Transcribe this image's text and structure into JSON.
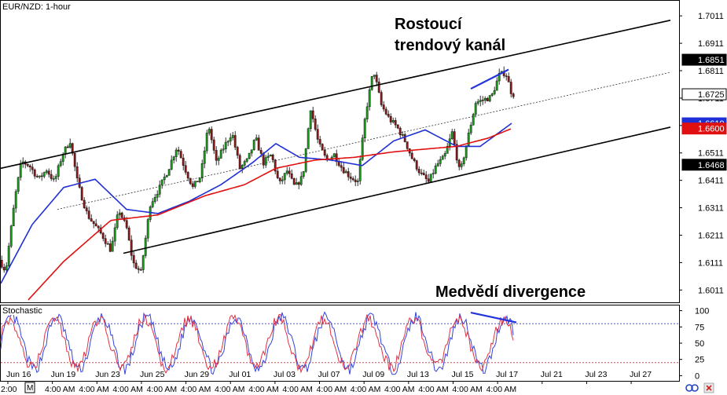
{
  "chart_data": [
    {
      "type": "candlestick",
      "symbol_label": "EUR/NZD: 1-hour",
      "annotations": {
        "channel_title_line1": "Rostoucí",
        "channel_title_line2": "trendový kanál",
        "divergence_title": "Medvědí divergence"
      },
      "y_ticks": [
        "1.7011",
        "1.6911",
        "1.6811",
        "1.6711",
        "1.6611",
        "1.6511",
        "1.6411",
        "1.6311",
        "1.6211",
        "1.6111",
        "1.6011"
      ],
      "y_tick_values": [
        1.7011,
        1.6911,
        1.6811,
        1.6711,
        1.6611,
        1.6511,
        1.6411,
        1.6311,
        1.6211,
        1.6111,
        1.6011
      ],
      "ylim": [
        1.5966,
        1.7066
      ],
      "price_tags": [
        {
          "label": "1.6851",
          "value": 1.6851,
          "style": "black"
        },
        {
          "label": "1.6725",
          "value": 1.6725,
          "style": "white"
        },
        {
          "label": "1.6619",
          "value": 1.6619,
          "style": "blue"
        },
        {
          "label": "1.6600",
          "value": 1.66,
          "style": "red"
        },
        {
          "label": "1.6468",
          "value": 1.6468,
          "style": "black"
        }
      ],
      "price_path": [
        {
          "bar": 0,
          "price": 1.612
        },
        {
          "bar": 8,
          "price": 1.608
        },
        {
          "bar": 20,
          "price": 1.635
        },
        {
          "bar": 28,
          "price": 1.648
        },
        {
          "bar": 38,
          "price": 1.6465
        },
        {
          "bar": 50,
          "price": 1.6415
        },
        {
          "bar": 60,
          "price": 1.645
        },
        {
          "bar": 70,
          "price": 1.6405
        },
        {
          "bar": 80,
          "price": 1.6505
        },
        {
          "bar": 90,
          "price": 1.6555
        },
        {
          "bar": 100,
          "price": 1.6395
        },
        {
          "bar": 112,
          "price": 1.6285
        },
        {
          "bar": 122,
          "price": 1.6245
        },
        {
          "bar": 132,
          "price": 1.6205
        },
        {
          "bar": 142,
          "price": 1.6155
        },
        {
          "bar": 152,
          "price": 1.6305
        },
        {
          "bar": 162,
          "price": 1.6235
        },
        {
          "bar": 170,
          "price": 1.611
        },
        {
          "bar": 180,
          "price": 1.6075
        },
        {
          "bar": 192,
          "price": 1.6325
        },
        {
          "bar": 204,
          "price": 1.6385
        },
        {
          "bar": 214,
          "price": 1.6445
        },
        {
          "bar": 226,
          "price": 1.6535
        },
        {
          "bar": 236,
          "price": 1.6455
        },
        {
          "bar": 246,
          "price": 1.6385
        },
        {
          "bar": 256,
          "price": 1.6425
        },
        {
          "bar": 266,
          "price": 1.6615
        },
        {
          "bar": 276,
          "price": 1.6475
        },
        {
          "bar": 286,
          "price": 1.6535
        },
        {
          "bar": 296,
          "price": 1.6585
        },
        {
          "bar": 306,
          "price": 1.6455
        },
        {
          "bar": 316,
          "price": 1.6485
        },
        {
          "bar": 326,
          "price": 1.6565
        },
        {
          "bar": 336,
          "price": 1.6475
        },
        {
          "bar": 346,
          "price": 1.6505
        },
        {
          "bar": 356,
          "price": 1.6395
        },
        {
          "bar": 366,
          "price": 1.6445
        },
        {
          "bar": 376,
          "price": 1.6385
        },
        {
          "bar": 386,
          "price": 1.6425
        },
        {
          "bar": 396,
          "price": 1.6675
        },
        {
          "bar": 406,
          "price": 1.6545
        },
        {
          "bar": 416,
          "price": 1.6485
        },
        {
          "bar": 426,
          "price": 1.6505
        },
        {
          "bar": 436,
          "price": 1.6455
        },
        {
          "bar": 446,
          "price": 1.6425
        },
        {
          "bar": 456,
          "price": 1.6405
        },
        {
          "bar": 466,
          "price": 1.6655
        },
        {
          "bar": 476,
          "price": 1.6815
        },
        {
          "bar": 486,
          "price": 1.6685
        },
        {
          "bar": 496,
          "price": 1.6635
        },
        {
          "bar": 506,
          "price": 1.6605
        },
        {
          "bar": 516,
          "price": 1.6555
        },
        {
          "bar": 526,
          "price": 1.6485
        },
        {
          "bar": 536,
          "price": 1.6435
        },
        {
          "bar": 546,
          "price": 1.6405
        },
        {
          "bar": 556,
          "price": 1.6465
        },
        {
          "bar": 566,
          "price": 1.6495
        },
        {
          "bar": 576,
          "price": 1.6585
        },
        {
          "bar": 586,
          "price": 1.6435
        },
        {
          "bar": 596,
          "price": 1.6565
        },
        {
          "bar": 606,
          "price": 1.6695
        },
        {
          "bar": 616,
          "price": 1.6705
        },
        {
          "bar": 626,
          "price": 1.6715
        },
        {
          "bar": 636,
          "price": 1.6795
        },
        {
          "bar": 644,
          "price": 1.6805
        },
        {
          "bar": 652,
          "price": 1.6725
        }
      ],
      "moving_averages": [
        {
          "color": "#1f2fd6",
          "points": [
            {
              "bar": 0,
              "price": 1.6035
            },
            {
              "bar": 40,
              "price": 1.625
            },
            {
              "bar": 80,
              "price": 1.6385
            },
            {
              "bar": 120,
              "price": 1.6415
            },
            {
              "bar": 160,
              "price": 1.6305
            },
            {
              "bar": 200,
              "price": 1.629
            },
            {
              "bar": 240,
              "price": 1.6335
            },
            {
              "bar": 280,
              "price": 1.6395
            },
            {
              "bar": 320,
              "price": 1.6475
            },
            {
              "bar": 350,
              "price": 1.6545
            },
            {
              "bar": 380,
              "price": 1.6495
            },
            {
              "bar": 420,
              "price": 1.6485
            },
            {
              "bar": 460,
              "price": 1.6465
            },
            {
              "bar": 500,
              "price": 1.6555
            },
            {
              "bar": 540,
              "price": 1.6595
            },
            {
              "bar": 580,
              "price": 1.6535
            },
            {
              "bar": 610,
              "price": 1.6535
            },
            {
              "bar": 650,
              "price": 1.6619
            }
          ]
        },
        {
          "color": "#e01010",
          "points": [
            {
              "bar": 35,
              "price": 1.5975
            },
            {
              "bar": 80,
              "price": 1.6115
            },
            {
              "bar": 140,
              "price": 1.6265
            },
            {
              "bar": 200,
              "price": 1.6285
            },
            {
              "bar": 260,
              "price": 1.6355
            },
            {
              "bar": 310,
              "price": 1.6395
            },
            {
              "bar": 350,
              "price": 1.6455
            },
            {
              "bar": 400,
              "price": 1.6485
            },
            {
              "bar": 450,
              "price": 1.6495
            },
            {
              "bar": 500,
              "price": 1.6515
            },
            {
              "bar": 540,
              "price": 1.6525
            },
            {
              "bar": 580,
              "price": 1.6535
            },
            {
              "bar": 620,
              "price": 1.6565
            },
            {
              "bar": 650,
              "price": 1.66
            }
          ]
        }
      ],
      "channel": {
        "upper": {
          "from": {
            "bar": 0,
            "price": 1.6455
          },
          "to": {
            "bar": 852,
            "price": 1.6995
          }
        },
        "lower": {
          "from": {
            "bar": 156,
            "price": 1.6145
          },
          "to": {
            "bar": 852,
            "price": 1.6605
          }
        },
        "middle": {
          "from": {
            "bar": 72,
            "price": 1.6305
          },
          "to": {
            "bar": 852,
            "price": 1.6805
          }
        }
      },
      "divergence_price_line": {
        "from": {
          "bar": 598,
          "price": 1.6745
        },
        "to": {
          "bar": 646,
          "price": 1.6815
        }
      },
      "colors": {
        "bull": "#1a9a1a",
        "bear": "#8b1a1a",
        "wick": "#000000",
        "channel": "#000000",
        "divergence": "#2233dd"
      }
    },
    {
      "type": "line",
      "title": "Stochastic",
      "y_ticks": [
        "100",
        "75",
        "50",
        "25",
        "0"
      ],
      "y_tick_values": [
        100,
        75,
        50,
        25,
        0
      ],
      "ylim": [
        -8,
        108
      ],
      "levels": [
        {
          "value": 80,
          "color": "#3333cc"
        },
        {
          "value": 20,
          "color": "#cc3333"
        }
      ],
      "series": [
        {
          "color": "#3344dd",
          "period": 10,
          "amplitude": 40
        },
        {
          "color": "#dd3344",
          "period": 10,
          "amplitude": 37
        }
      ],
      "divergence_line": {
        "from": {
          "bar": 598,
          "value": 97
        },
        "to": {
          "bar": 656,
          "value": 82
        }
      }
    }
  ],
  "x_axis": {
    "date_labels": [
      "Jun 16",
      "Jun 19",
      "Jun 23",
      "Jun 25",
      "Jun 29",
      "Jul 01",
      "Jul 03",
      "Jul 07",
      "Jul 09",
      "Jul 13",
      "Jul 15",
      "Jul 17",
      "Jul 21",
      "Jul 23",
      "Jul 27"
    ],
    "time_labels": [
      "2:00",
      "4:00 AM",
      "4:00 AM",
      "4:00 AM",
      "4:00 AM",
      "4:00 AM",
      "4:00 AM",
      "4:00 AM",
      "4:00 AM",
      "4:00 AM",
      "4:00 AM",
      "4:00 AM",
      "4:00 AM",
      "4:00 AM",
      "4:00 AM"
    ]
  },
  "toolbar": {
    "left_marker": "M"
  }
}
